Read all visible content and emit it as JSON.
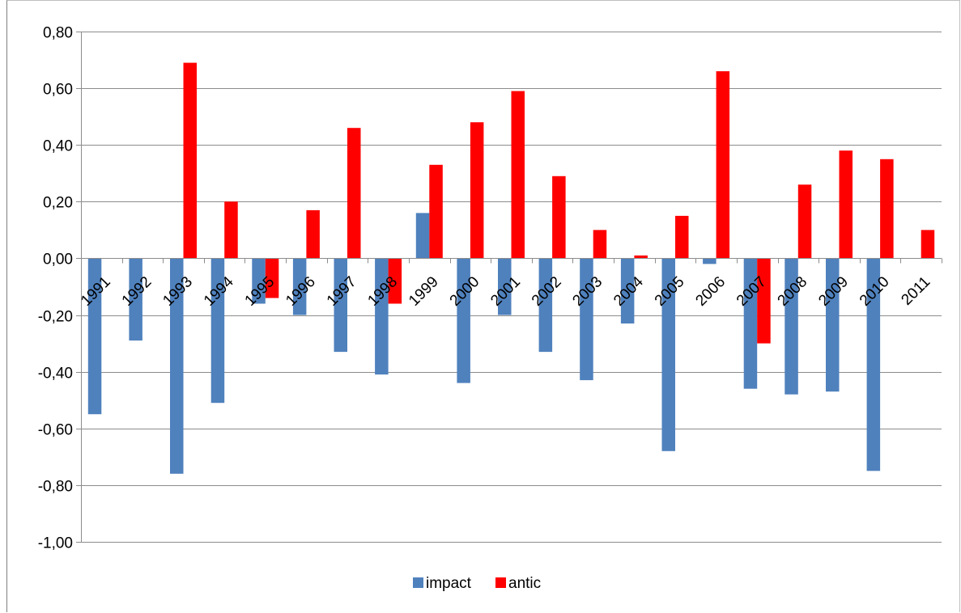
{
  "chart_data": {
    "type": "bar",
    "title": "",
    "xlabel": "",
    "ylabel": "",
    "categories": [
      "1991",
      "1992",
      "1993",
      "1994",
      "1995",
      "1996",
      "1997",
      "1998",
      "1999",
      "2000",
      "2001",
      "2002",
      "2003",
      "2004",
      "2005",
      "2006",
      "2007",
      "2008",
      "2009",
      "2010",
      "2011"
    ],
    "series": [
      {
        "name": "impact",
        "color": "#4f81bd",
        "values": [
          -0.55,
          -0.29,
          -0.76,
          -0.51,
          -0.16,
          -0.2,
          -0.33,
          -0.41,
          0.16,
          -0.44,
          -0.2,
          -0.33,
          -0.43,
          -0.23,
          -0.68,
          -0.02,
          -0.46,
          -0.48,
          -0.47,
          -0.75,
          0.0
        ]
      },
      {
        "name": "antic",
        "color": "#ff0000",
        "values": [
          0.0,
          0.0,
          0.69,
          0.2,
          -0.14,
          0.17,
          0.46,
          -0.16,
          0.33,
          0.48,
          0.59,
          0.29,
          0.1,
          0.01,
          0.15,
          0.66,
          -0.3,
          0.26,
          0.38,
          0.35,
          0.1
        ]
      }
    ],
    "ylim": [
      -1.0,
      0.8
    ],
    "yticks": [
      "0,80",
      "0,60",
      "0,40",
      "0,20",
      "0,00",
      "-0,20",
      "-0,40",
      "-0,60",
      "-0,80",
      "-1,00"
    ],
    "ytick_values": [
      0.8,
      0.6,
      0.4,
      0.2,
      0.0,
      -0.2,
      -0.4,
      -0.6,
      -0.8,
      -1.0
    ],
    "grid": true,
    "legend": "bottom"
  }
}
